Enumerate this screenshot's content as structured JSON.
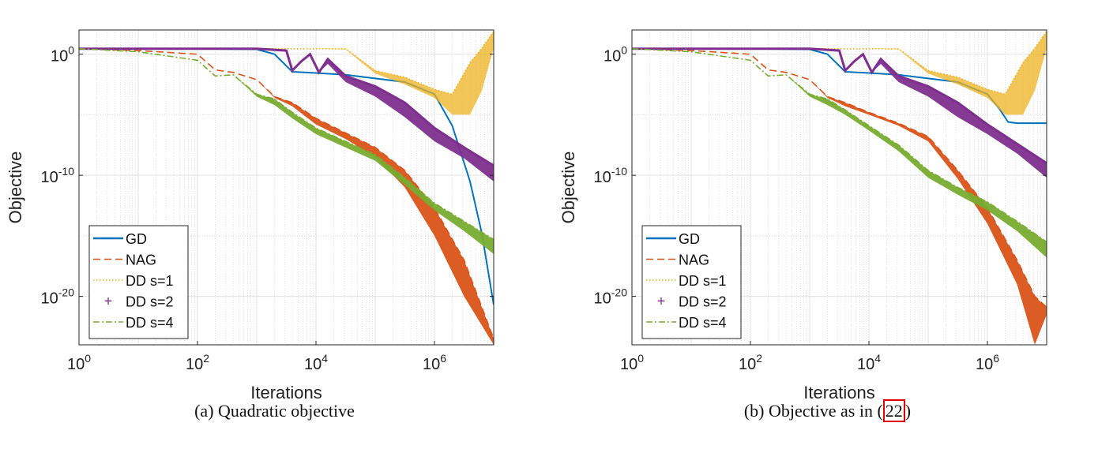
{
  "chart_data": [
    {
      "type": "line",
      "caption_prefix": "(a) Quadratic objective",
      "caption_ref": "",
      "caption_suffix": "",
      "xlabel": "Iterations",
      "ylabel": "Objective",
      "xscale": "log",
      "yscale": "log",
      "xlim_log10": [
        0,
        7
      ],
      "ylim_log10": [
        -24,
        2
      ],
      "xticks": [
        {
          "base": "10",
          "exp": "0",
          "v": 0
        },
        {
          "base": "10",
          "exp": "2",
          "v": 2
        },
        {
          "base": "10",
          "exp": "4",
          "v": 4
        },
        {
          "base": "10",
          "exp": "6",
          "v": 6
        }
      ],
      "yticks": [
        {
          "base": "10",
          "exp": "0",
          "v": 0
        },
        {
          "base": "10",
          "exp": "-10",
          "v": -10
        },
        {
          "base": "10",
          "exp": "-20",
          "v": -20
        }
      ],
      "grid": true,
      "legend_position": "bottom-left",
      "series": [
        {
          "name": "GD",
          "color": "#0072BD",
          "style": "solid",
          "log10x": [
            0,
            1,
            2,
            3,
            3.3,
            3.6,
            4,
            4.5,
            5,
            5.5,
            6,
            6.3,
            6.6,
            6.8,
            7
          ],
          "log10y": [
            0.45,
            0.45,
            0.45,
            0.4,
            0.0,
            -1.45,
            -1.55,
            -1.7,
            -2.0,
            -2.3,
            -3.3,
            -5.9,
            -10.5,
            -14.8,
            -20.7
          ]
        },
        {
          "name": "NAG",
          "color": "#D95319",
          "style": "dashed",
          "log10x": [
            0,
            1,
            2,
            2.3,
            2.6,
            3,
            3.3,
            3.6,
            4,
            4.5,
            5,
            5.5,
            6,
            6.5,
            7
          ],
          "log10y": [
            0.45,
            0.3,
            0.0,
            -1.3,
            -1.5,
            -2.1,
            -3.5,
            -4.0,
            -5.3,
            -6.5,
            -7.7,
            -9.6,
            -12.7,
            -17,
            -23.5
          ],
          "band_log10y": [
            0.45,
            0.3,
            0.0,
            -1.3,
            -1.5,
            -2.1,
            -3.6,
            -4.3,
            -5.8,
            -7.0,
            -8.5,
            -11,
            -15,
            -20,
            -24
          ]
        },
        {
          "name": "DD s=1",
          "color": "#EDB120",
          "style": "dotted",
          "log10x": [
            0,
            2,
            3,
            4,
            4.5,
            5,
            5.5,
            6,
            6.3,
            6.6,
            6.8,
            7
          ],
          "log10y": [
            0.45,
            0.45,
            0.45,
            0.45,
            0.45,
            -1.35,
            -1.9,
            -2.9,
            -3.3,
            -0.7,
            0.5,
            1.9
          ],
          "band_log10y": [
            0.45,
            0.45,
            0.45,
            0.45,
            0.4,
            -1.6,
            -2.5,
            -3.6,
            -5.0,
            -5.0,
            -3.0,
            0.5
          ]
        },
        {
          "name": "DD s=2",
          "color": "#7E2F8E",
          "style": "plus",
          "log10x": [
            0,
            2,
            3,
            3.5,
            3.6,
            3.75,
            3.9,
            4.05,
            4.2,
            4.5,
            5,
            5.5,
            6,
            6.5,
            7
          ],
          "log10y": [
            0.45,
            0.45,
            0.45,
            0.3,
            -1.35,
            -0.6,
            0.0,
            -1.5,
            -0.4,
            -1.8,
            -2.65,
            -4.0,
            -6.1,
            -7.7,
            -9.2
          ],
          "band_log10y": [
            0.45,
            0.45,
            0.45,
            0.3,
            -1.35,
            -0.6,
            0.0,
            -1.5,
            -0.8,
            -2.3,
            -3.5,
            -5.2,
            -7.2,
            -8.6,
            -10.5
          ]
        },
        {
          "name": "DD s=4",
          "color": "#77AC30",
          "style": "dashdot",
          "log10x": [
            0,
            1,
            2,
            2.3,
            2.6,
            3,
            3.3,
            3.6,
            4,
            4.5,
            5,
            5.5,
            6,
            6.5,
            7
          ],
          "log10y": [
            0.45,
            0.2,
            -0.5,
            -1.8,
            -1.7,
            -3.3,
            -3.7,
            -4.8,
            -6.1,
            -7.2,
            -8.3,
            -10.2,
            -12.3,
            -13.8,
            -15.3
          ],
          "band_log10y": [
            0.45,
            0.2,
            -0.5,
            -1.8,
            -1.7,
            -3.5,
            -4.2,
            -5.3,
            -6.6,
            -7.7,
            -8.8,
            -10.8,
            -12.9,
            -14.6,
            -16.5
          ]
        }
      ]
    },
    {
      "type": "line",
      "caption_prefix": "(b) Objective as in (",
      "caption_ref": "22",
      "caption_suffix": ")",
      "xlabel": "Iterations",
      "ylabel": "Objective",
      "xscale": "log",
      "yscale": "log",
      "xlim_log10": [
        0,
        7
      ],
      "ylim_log10": [
        -24,
        2
      ],
      "xticks": [
        {
          "base": "10",
          "exp": "0",
          "v": 0
        },
        {
          "base": "10",
          "exp": "2",
          "v": 2
        },
        {
          "base": "10",
          "exp": "4",
          "v": 4
        },
        {
          "base": "10",
          "exp": "6",
          "v": 6
        }
      ],
      "yticks": [
        {
          "base": "10",
          "exp": "0",
          "v": 0
        },
        {
          "base": "10",
          "exp": "-10",
          "v": -10
        },
        {
          "base": "10",
          "exp": "-20",
          "v": -20
        }
      ],
      "grid": true,
      "legend_position": "bottom-left",
      "series": [
        {
          "name": "GD",
          "color": "#0072BD",
          "style": "solid",
          "log10x": [
            0,
            1,
            2,
            3,
            3.3,
            3.6,
            4,
            4.5,
            5,
            5.5,
            6,
            6.2,
            6.35,
            6.5,
            7
          ],
          "log10y": [
            0.45,
            0.45,
            0.45,
            0.4,
            0.0,
            -1.45,
            -1.55,
            -1.7,
            -2.0,
            -2.3,
            -3.3,
            -4.5,
            -5.6,
            -5.7,
            -5.7
          ]
        },
        {
          "name": "NAG",
          "color": "#D95319",
          "style": "dashed",
          "log10x": [
            0,
            1,
            2,
            2.3,
            2.6,
            3,
            3.3,
            3.6,
            4,
            4.5,
            5,
            5.5,
            6,
            6.5,
            6.8,
            7
          ],
          "log10y": [
            0.45,
            0.3,
            0.0,
            -1.3,
            -1.5,
            -2.1,
            -3.5,
            -4.0,
            -4.8,
            -5.7,
            -6.8,
            -9.6,
            -12.7,
            -17,
            -20,
            -20.9
          ],
          "band_log10y": [
            0.45,
            0.3,
            0.0,
            -1.3,
            -1.5,
            -2.1,
            -3.6,
            -4.3,
            -5.0,
            -5.9,
            -7.2,
            -10.3,
            -14,
            -19,
            -24,
            -21.5
          ]
        },
        {
          "name": "DD s=1",
          "color": "#EDB120",
          "style": "dotted",
          "log10x": [
            0,
            2,
            3,
            4,
            4.5,
            5,
            5.5,
            6,
            6.3,
            6.6,
            6.8,
            7
          ],
          "log10y": [
            0.45,
            0.45,
            0.45,
            0.45,
            0.45,
            -1.35,
            -1.9,
            -2.9,
            -3.3,
            -0.7,
            0.5,
            1.9
          ],
          "band_log10y": [
            0.45,
            0.45,
            0.45,
            0.45,
            0.4,
            -1.6,
            -2.5,
            -3.6,
            -5.0,
            -5.0,
            -3.0,
            0.5
          ]
        },
        {
          "name": "DD s=2",
          "color": "#7E2F8E",
          "style": "plus",
          "log10x": [
            0,
            2,
            3,
            3.5,
            3.6,
            3.75,
            3.9,
            4.05,
            4.2,
            4.5,
            5,
            5.5,
            6,
            6.5,
            7
          ],
          "log10y": [
            0.45,
            0.45,
            0.45,
            0.3,
            -1.35,
            -0.6,
            0.0,
            -1.5,
            -0.4,
            -1.8,
            -2.65,
            -4.0,
            -5.8,
            -7.4,
            -9.0
          ],
          "band_log10y": [
            0.45,
            0.45,
            0.45,
            0.3,
            -1.35,
            -0.6,
            0.0,
            -1.5,
            -0.8,
            -2.3,
            -3.5,
            -5.2,
            -6.6,
            -8.2,
            -10.2
          ]
        },
        {
          "name": "DD s=4",
          "color": "#77AC30",
          "style": "dashdot",
          "log10x": [
            0,
            1,
            2,
            2.3,
            2.6,
            3,
            3.3,
            3.6,
            4,
            4.5,
            5,
            5.5,
            6,
            6.5,
            7
          ],
          "log10y": [
            0.45,
            0.2,
            -0.5,
            -1.8,
            -1.7,
            -3.3,
            -3.7,
            -4.6,
            -5.9,
            -7.5,
            -9.6,
            -11,
            -12.2,
            -13.8,
            -15.5
          ],
          "band_log10y": [
            0.45,
            0.2,
            -0.5,
            -1.8,
            -1.7,
            -3.5,
            -4.2,
            -5.0,
            -6.3,
            -8.0,
            -10.2,
            -11.6,
            -12.9,
            -14.6,
            -16.8
          ]
        }
      ]
    }
  ]
}
